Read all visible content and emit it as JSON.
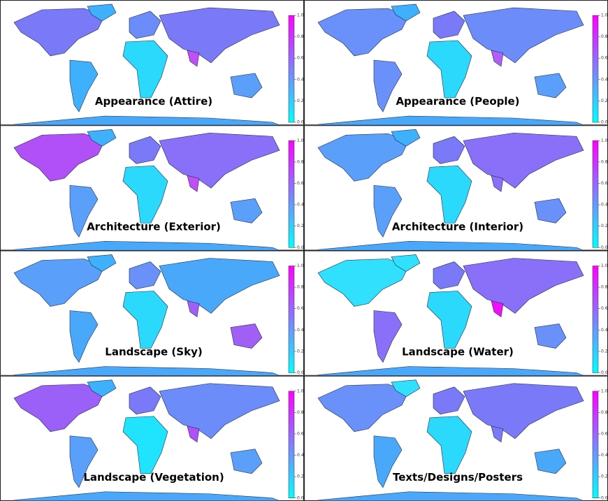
{
  "panels": [
    {
      "title": "Appearance (Attire)"
    },
    {
      "title": "Appearance (People)"
    },
    {
      "title": "Architecture (Exterior)"
    },
    {
      "title": "Architecture (Interior)"
    },
    {
      "title": "Landscape (Sky)"
    },
    {
      "title": "Landscape (Water)"
    },
    {
      "title": "Landscape (Vegetation)"
    },
    {
      "title": "Texts/Designs/Posters"
    }
  ],
  "colorbar": {
    "range": [
      0,
      1
    ],
    "ticks": [
      {
        "value": 0,
        "label": "0.0"
      },
      0.2,
      0.4,
      0.6,
      0.8,
      {
        "value": 1,
        "label": "1.0"
      }
    ]
  }
}
